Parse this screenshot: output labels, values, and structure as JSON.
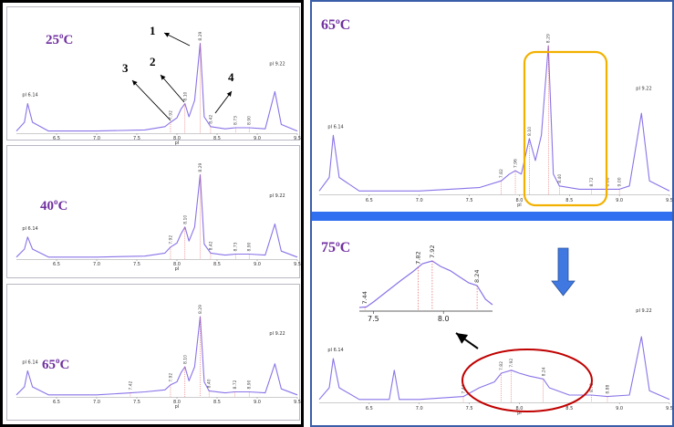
{
  "colors": {
    "trace": "#8a73e8",
    "trace_highlight": "#d85ae0",
    "marker": "#e04848",
    "temperature_label": "#7030a0",
    "left_border": "#000000",
    "right_border": "#3a5ea8",
    "divider": "#2f6ff0",
    "highlight_box": "#f2b100",
    "highlight_ellipse": "#c00000",
    "down_arrow": "#3f78e0"
  },
  "panels": {
    "left": {
      "spectra": [
        {
          "temperature": "25",
          "unit": "oC",
          "pl_left": "pI 6.14",
          "pl_right": "pI 9.22",
          "peak_labels": [
            "7.92",
            "8.10",
            "8.29",
            "8.42",
            "8.73",
            "8.90"
          ],
          "annotations": [
            "1",
            "2",
            "3",
            "4"
          ]
        },
        {
          "temperature": "40",
          "unit": "oC",
          "pl_left": "pI 6.14",
          "pl_right": "pI 9.22",
          "peak_labels": [
            "7.92",
            "8.10",
            "8.29",
            "8.42",
            "8.73",
            "8.90"
          ]
        },
        {
          "temperature": "65",
          "unit": "oC",
          "pl_left": "pI 6.14",
          "pl_right": "pI 9.22",
          "peak_labels": [
            "7.42",
            "7.92",
            "8.10",
            "8.29",
            "8.40",
            "8.72",
            "8.90"
          ]
        }
      ]
    },
    "right": {
      "top": {
        "temperature": "65",
        "unit": "oC",
        "pl_left": "pI 6.14",
        "pl_right": "pI 9.22",
        "peak_labels": [
          "7.82",
          "7.96",
          "8.10",
          "8.29",
          "8.40",
          "8.72",
          "8.88",
          "9.00"
        ]
      },
      "bottom": {
        "temperature": "75",
        "unit": "oC",
        "pl_left": "pI 6.14",
        "pl_right": "pI 9.22",
        "peak_labels": [
          "7.44",
          "7.82",
          "7.92",
          "8.24",
          "8.72",
          "8.88"
        ],
        "inset_peak_labels": [
          "7.44",
          "7.82",
          "7.92",
          "8.24"
        ]
      }
    }
  },
  "chart_data": [
    {
      "type": "line",
      "id": "left-25",
      "title": "25oC",
      "xlabel": "pI",
      "ylabel": "",
      "xlim": [
        6.0,
        9.5
      ],
      "xticks": [
        "6.5",
        "7.0",
        "7.5",
        "8.0",
        "8.5",
        "9.0",
        "9.5"
      ],
      "series": [
        {
          "x": [
            6.0,
            6.1,
            6.14,
            6.2,
            6.4,
            7.0,
            7.6,
            7.85,
            7.92,
            8.0,
            8.05,
            8.1,
            8.15,
            8.22,
            8.29,
            8.34,
            8.42,
            8.6,
            8.73,
            8.9,
            9.1,
            9.22,
            9.3,
            9.5
          ],
          "y": [
            0.02,
            0.1,
            0.27,
            0.1,
            0.02,
            0.02,
            0.03,
            0.06,
            0.1,
            0.14,
            0.22,
            0.27,
            0.15,
            0.3,
            0.82,
            0.15,
            0.06,
            0.04,
            0.05,
            0.05,
            0.04,
            0.38,
            0.08,
            0.02
          ]
        }
      ]
    },
    {
      "type": "line",
      "id": "left-40",
      "title": "40oC",
      "xlabel": "pI",
      "ylabel": "",
      "xlim": [
        6.0,
        9.5
      ],
      "xticks": [
        "6.5",
        "7.0",
        "7.5",
        "8.0",
        "8.5",
        "9.0",
        "9.5"
      ],
      "series": [
        {
          "x": [
            6.0,
            6.1,
            6.14,
            6.2,
            6.4,
            7.0,
            7.6,
            7.85,
            7.92,
            8.0,
            8.05,
            8.1,
            8.15,
            8.22,
            8.29,
            8.34,
            8.42,
            8.6,
            8.73,
            8.9,
            9.1,
            9.22,
            9.3,
            9.5
          ],
          "y": [
            0.02,
            0.1,
            0.22,
            0.1,
            0.02,
            0.02,
            0.03,
            0.06,
            0.12,
            0.16,
            0.25,
            0.32,
            0.18,
            0.32,
            0.84,
            0.15,
            0.06,
            0.04,
            0.05,
            0.05,
            0.04,
            0.35,
            0.08,
            0.02
          ]
        }
      ]
    },
    {
      "type": "line",
      "id": "left-65",
      "title": "65oC",
      "xlabel": "pI",
      "ylabel": "",
      "xlim": [
        6.0,
        9.5
      ],
      "xticks": [
        "6.5",
        "7.0",
        "7.5",
        "8.0",
        "8.5",
        "9.0",
        "9.5"
      ],
      "series": [
        {
          "x": [
            6.0,
            6.1,
            6.14,
            6.2,
            6.4,
            7.0,
            7.42,
            7.6,
            7.85,
            7.92,
            8.0,
            8.05,
            8.1,
            8.15,
            8.22,
            8.29,
            8.34,
            8.4,
            8.6,
            8.72,
            8.9,
            9.1,
            9.22,
            9.3,
            9.5
          ],
          "y": [
            0.02,
            0.1,
            0.26,
            0.1,
            0.02,
            0.02,
            0.04,
            0.05,
            0.07,
            0.12,
            0.15,
            0.24,
            0.3,
            0.16,
            0.3,
            0.8,
            0.15,
            0.06,
            0.04,
            0.05,
            0.05,
            0.04,
            0.33,
            0.08,
            0.02
          ]
        }
      ]
    },
    {
      "type": "line",
      "id": "right-65",
      "title": "65oC",
      "xlabel": "pI",
      "ylabel": "",
      "xlim": [
        6.0,
        9.5
      ],
      "xticks": [
        "6.5",
        "7.0",
        "7.5",
        "8.0",
        "8.5",
        "9.0",
        "9.5"
      ],
      "series": [
        {
          "x": [
            6.0,
            6.1,
            6.14,
            6.2,
            6.4,
            7.0,
            7.6,
            7.82,
            7.9,
            7.96,
            8.02,
            8.1,
            8.16,
            8.22,
            8.29,
            8.34,
            8.4,
            8.6,
            8.72,
            8.88,
            9.0,
            9.1,
            9.22,
            9.3,
            9.5
          ],
          "y": [
            0.02,
            0.1,
            0.35,
            0.1,
            0.02,
            0.02,
            0.04,
            0.08,
            0.12,
            0.14,
            0.12,
            0.33,
            0.2,
            0.35,
            0.88,
            0.12,
            0.05,
            0.03,
            0.03,
            0.03,
            0.03,
            0.05,
            0.48,
            0.08,
            0.02
          ]
        }
      ]
    },
    {
      "type": "line",
      "id": "right-75",
      "title": "75oC",
      "xlabel": "pI",
      "ylabel": "",
      "xlim": [
        6.0,
        9.5
      ],
      "xticks": [
        "6.5",
        "7.0",
        "7.5",
        "8.0",
        "8.5",
        "9.0",
        "9.5"
      ],
      "series": [
        {
          "x": [
            6.0,
            6.1,
            6.14,
            6.2,
            6.4,
            6.7,
            6.75,
            6.8,
            7.0,
            7.44,
            7.6,
            7.75,
            7.82,
            7.92,
            8.0,
            8.1,
            8.24,
            8.3,
            8.5,
            8.72,
            8.88,
            9.1,
            9.22,
            9.3,
            9.5
          ],
          "y": [
            0.02,
            0.1,
            0.3,
            0.1,
            0.02,
            0.02,
            0.22,
            0.02,
            0.02,
            0.04,
            0.1,
            0.14,
            0.2,
            0.22,
            0.2,
            0.18,
            0.16,
            0.1,
            0.05,
            0.05,
            0.04,
            0.05,
            0.45,
            0.08,
            0.02
          ]
        }
      ]
    },
    {
      "type": "line",
      "id": "inset-75",
      "title": "",
      "xlabel": "",
      "ylabel": "",
      "xlim": [
        7.4,
        8.35
      ],
      "xticks": [
        "7.5",
        "8.0"
      ],
      "series": [
        {
          "x": [
            7.4,
            7.45,
            7.5,
            7.6,
            7.7,
            7.78,
            7.85,
            7.92,
            7.98,
            8.05,
            8.12,
            8.18,
            8.24,
            8.3,
            8.35
          ],
          "y": [
            0.05,
            0.06,
            0.15,
            0.35,
            0.55,
            0.7,
            0.85,
            0.9,
            0.8,
            0.72,
            0.6,
            0.5,
            0.45,
            0.2,
            0.1
          ]
        }
      ]
    }
  ]
}
